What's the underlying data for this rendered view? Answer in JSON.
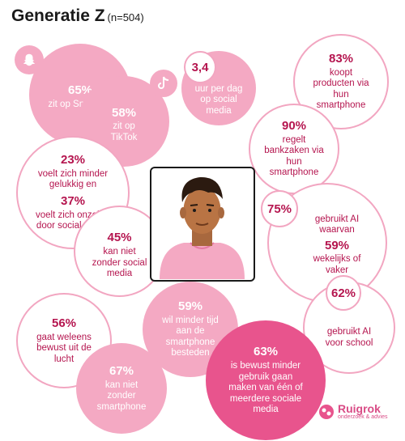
{
  "title": "Generatie Z",
  "subtitle": "(n=504)",
  "bubbles": {
    "snapchat": {
      "value": "65%",
      "text": "zit op Snapchat"
    },
    "tiktok": {
      "value": "58%",
      "text": "zit op TikTok"
    },
    "hours": {
      "value": "3,4",
      "text": "uur per dag op social media"
    },
    "shopping": {
      "value": "83%",
      "text": "koopt producten via hun smartphone"
    },
    "banking": {
      "value": "90%",
      "text": "regelt bankzaken via hun smartphone"
    },
    "unhappy": {
      "value": "23%",
      "text": "voelt zich minder gelukkig en"
    },
    "insecure": {
      "value": "37%",
      "text": "voelt zich onzeker door social media"
    },
    "without_sm": {
      "value": "45%",
      "text": "kan niet zonder social media"
    },
    "ai": {
      "value": "75%",
      "text": "gebruikt AI waarvan"
    },
    "ai_weekly": {
      "value": "59%",
      "text": "wekelijks of vaker"
    },
    "ai_school": {
      "value": "62%",
      "text": "gebruikt AI voor school"
    },
    "offline": {
      "value": "56%",
      "text": "gaat weleens bewust uit de lucht"
    },
    "less_time": {
      "value": "59%",
      "text": "wil minder tijd aan de smartphone besteden"
    },
    "without_phone": {
      "value": "67%",
      "text": "kan niet zonder smartphone"
    },
    "less_sm": {
      "value": "63%",
      "text": "is bewust minder gebruik gaan maken van één of meerdere sociale media"
    }
  },
  "logo": {
    "name": "Ruigrok",
    "tagline": "onderzoek & advies"
  },
  "icons": [
    "snapchat-icon",
    "tiktok-icon",
    "person-illustration",
    "ruigrok-logo-icon"
  ],
  "colors": {
    "light_pink": "#f4a9c3",
    "deep_pink": "#e8548d",
    "text_magenta": "#b5154f"
  }
}
